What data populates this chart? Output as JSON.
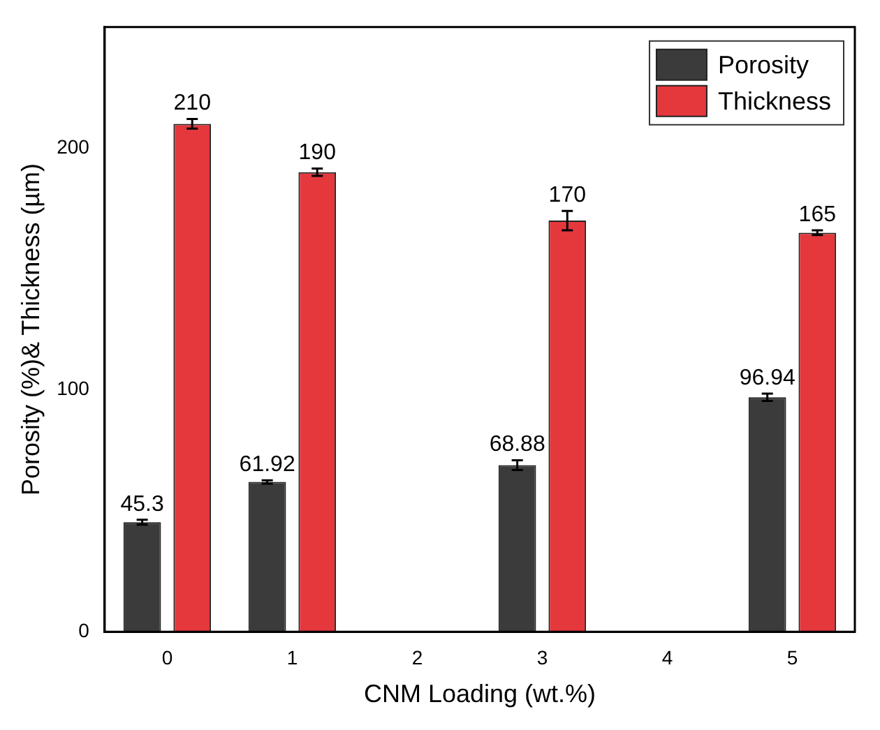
{
  "chart_data": {
    "type": "bar",
    "xlabel": "CNM Loading (wt.%)",
    "ylabel": "Porosity (%)& Thickness (µm)",
    "categories": [
      "0",
      "1",
      "2",
      "3",
      "4",
      "5"
    ],
    "series": [
      {
        "name": "Porosity",
        "color": "#3b3b3b",
        "values": [
          45.3,
          61.92,
          null,
          68.88,
          null,
          96.94
        ],
        "errors": [
          1,
          0.7,
          null,
          2,
          null,
          1.5
        ]
      },
      {
        "name": "Thickness",
        "color": "#e5383d",
        "values": [
          210,
          190,
          null,
          170,
          null,
          165
        ],
        "errors": [
          2,
          1.5,
          null,
          4,
          null,
          1
        ]
      }
    ],
    "data_labels": true,
    "ylim": [
      0,
      250
    ],
    "yticks": [
      0,
      100,
      200
    ],
    "grid": false,
    "legend": "top right"
  }
}
